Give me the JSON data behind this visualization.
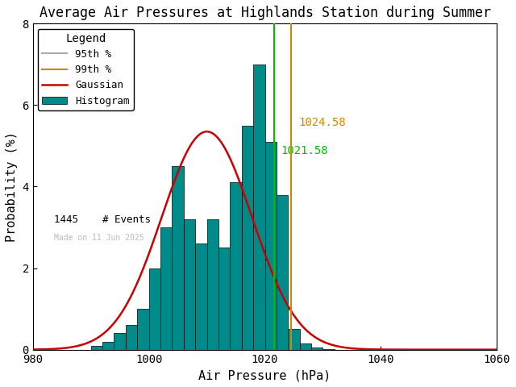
{
  "title": "Average Air Pressures at Highlands Station during Summer",
  "xlabel": "Air Pressure (hPa)",
  "ylabel": "Probability (%)",
  "xlim": [
    980,
    1060
  ],
  "ylim": [
    0,
    8
  ],
  "xticks": [
    980,
    1000,
    1020,
    1040,
    1060
  ],
  "yticks": [
    0,
    2,
    4,
    6,
    8
  ],
  "bar_color": "#008B8B",
  "bar_edge_color": "#000000",
  "gaussian_color": "#cc0000",
  "p95_color": "#00bb00",
  "p99_color": "#cc8800",
  "p95_legend_color": "#aaaaaa",
  "p99_legend_color": "#cc8800",
  "p95_value": 1021.58,
  "p99_value": 1024.58,
  "n_events": 1445,
  "watermark": "Made on 11 Jun 2025",
  "bin_left_edges": [
    990,
    992,
    994,
    996,
    998,
    1000,
    1002,
    1004,
    1006,
    1008,
    1010,
    1012,
    1014,
    1016,
    1018,
    1020,
    1022,
    1024,
    1026,
    1028,
    1030
  ],
  "bin_heights": [
    0.1,
    0.2,
    0.4,
    0.6,
    1.0,
    2.0,
    3.0,
    4.5,
    3.2,
    2.6,
    3.2,
    2.5,
    4.1,
    5.5,
    7.0,
    5.1,
    3.8,
    0.5,
    0.15,
    0.05,
    0.02
  ],
  "bin_width": 2,
  "gauss_mean": 1010.0,
  "gauss_std": 7.8,
  "gauss_peak": 5.35,
  "background_color": "#ffffff",
  "title_fontsize": 12,
  "label_fontsize": 11,
  "tick_fontsize": 10,
  "legend_fontsize": 9,
  "figsize": [
    6.4,
    4.8
  ],
  "dpi": 100
}
